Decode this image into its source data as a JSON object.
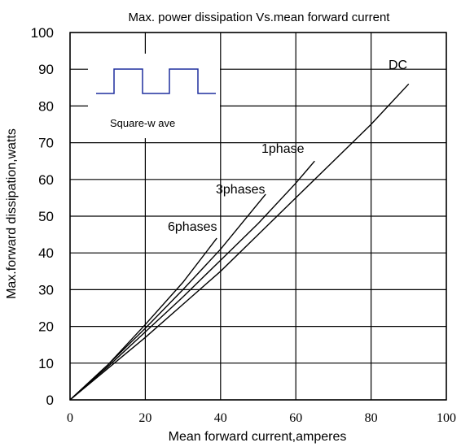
{
  "chart_data": {
    "type": "line",
    "title": "Max. power dissipation  Vs.mean  forward  current",
    "xlabel": "Mean forward  current,amperes",
    "ylabel": "Max.forward  dissipation,watts",
    "xlim": [
      0,
      100
    ],
    "ylim": [
      0,
      100
    ],
    "xticks": [
      "0",
      "20",
      "40",
      "60",
      "80",
      "100"
    ],
    "yticks": [
      "0",
      "10",
      "20",
      "30",
      "40",
      "50",
      "60",
      "70",
      "80",
      "90",
      "100"
    ],
    "grid": true,
    "series": [
      {
        "name": "6phases",
        "x": [
          0,
          10,
          20,
          30,
          39
        ],
        "y": [
          0,
          9.5,
          20.5,
          32,
          44
        ]
      },
      {
        "name": "3phases",
        "x": [
          0,
          10,
          20,
          30,
          40,
          52
        ],
        "y": [
          0,
          9.5,
          19.5,
          30,
          41,
          56
        ]
      },
      {
        "name": "1phase",
        "x": [
          0,
          10,
          20,
          30,
          40,
          50,
          60,
          65
        ],
        "y": [
          0,
          9,
          18.5,
          28,
          38,
          48,
          59,
          65
        ]
      },
      {
        "name": "DC",
        "x": [
          0,
          10,
          20,
          30,
          40,
          50,
          60,
          70,
          80,
          90
        ],
        "y": [
          0,
          8.5,
          17,
          26,
          35,
          45,
          55,
          65,
          75,
          86
        ]
      }
    ],
    "legend": {
      "label": "Square-w ave",
      "placement": "top-left"
    }
  }
}
